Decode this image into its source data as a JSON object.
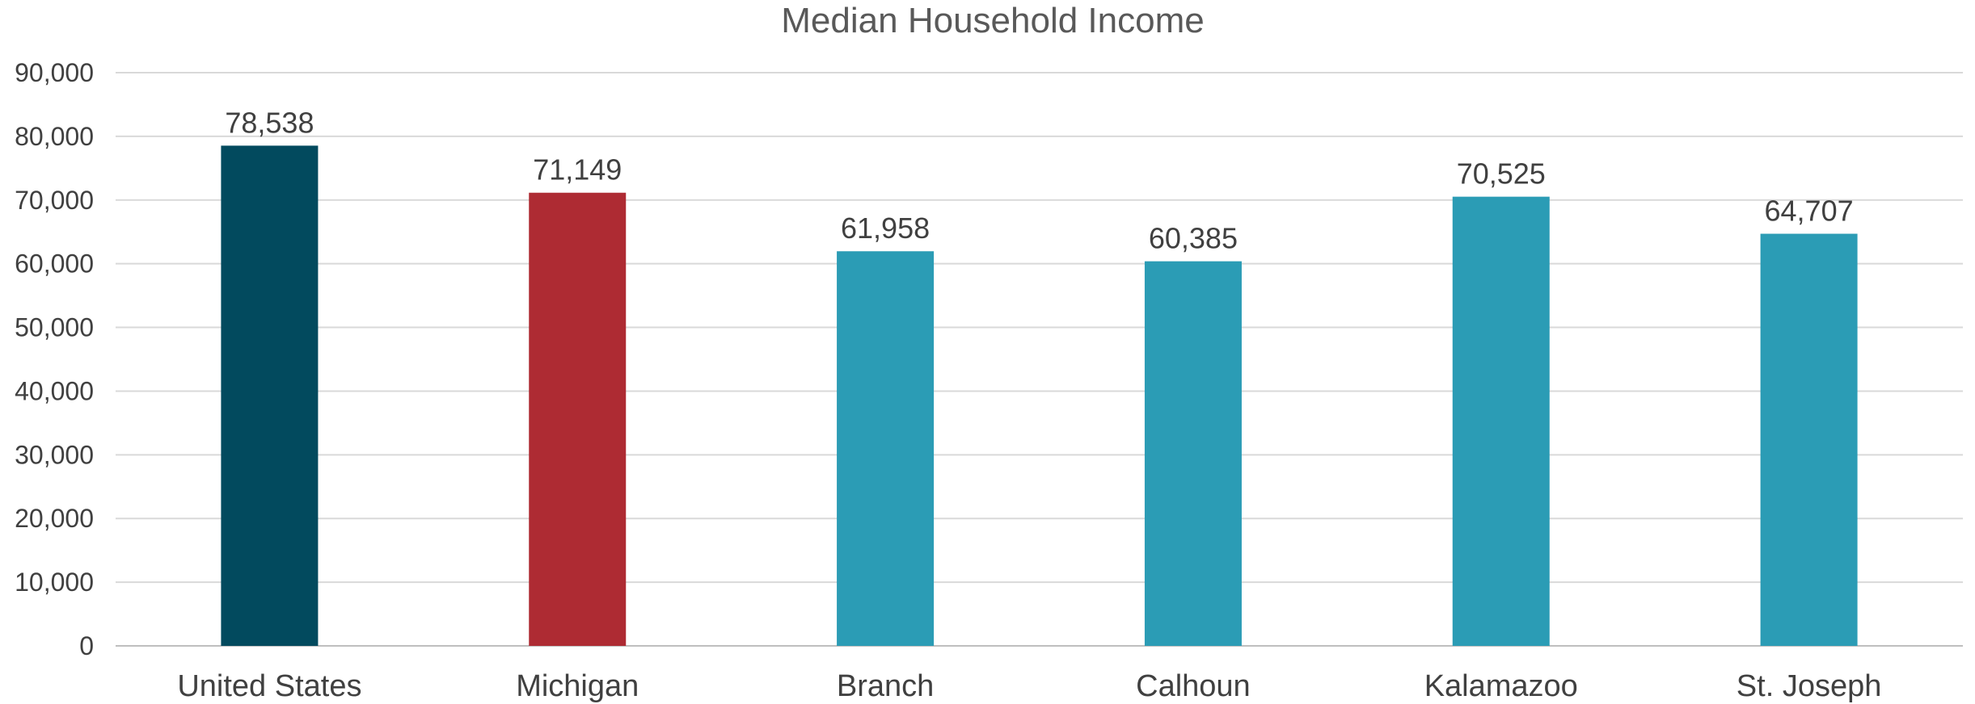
{
  "chart_data": {
    "type": "bar",
    "title": "Median Household Income",
    "xlabel": "",
    "ylabel": "",
    "ylim": [
      0,
      90000
    ],
    "y_ticks": [
      0,
      10000,
      20000,
      30000,
      40000,
      50000,
      60000,
      70000,
      80000,
      90000
    ],
    "y_tick_labels": [
      "0",
      "10,000",
      "20,000",
      "30,000",
      "40,000",
      "50,000",
      "60,000",
      "70,000",
      "80,000",
      "90,000"
    ],
    "categories": [
      "United States",
      "Michigan",
      "Branch",
      "Calhoun",
      "Kalamazoo",
      "St. Joseph"
    ],
    "values": [
      78538,
      71149,
      61958,
      60385,
      70525,
      64707
    ],
    "data_labels": [
      "78,538",
      "71,149",
      "61,958",
      "60,385",
      "70,525",
      "64,707"
    ],
    "bar_colors": [
      "#024a5e",
      "#ae2b33",
      "#2b9cb5",
      "#2b9cb5",
      "#2b9cb5",
      "#2b9cb5"
    ],
    "grid": true,
    "legend": "none"
  }
}
